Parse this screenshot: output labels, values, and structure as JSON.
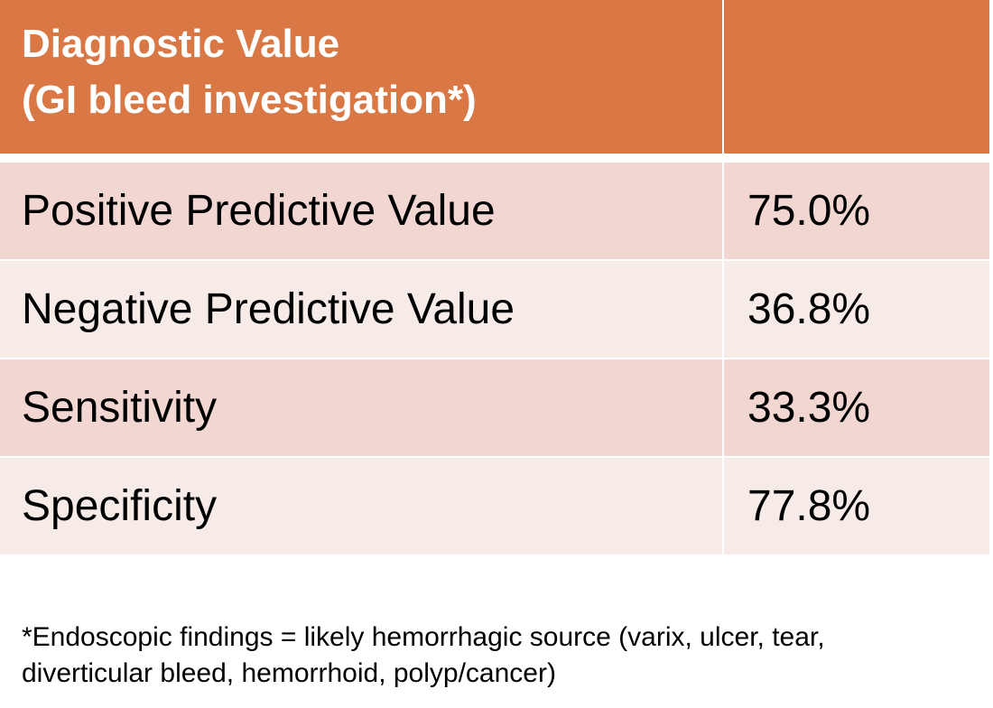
{
  "table": {
    "header": {
      "title_line1": "Diagnostic Value",
      "title_line2": "(GI bleed investigation*)",
      "value_header": ""
    },
    "rows": [
      {
        "metric": "Positive Predictive Value",
        "value": "75.0%"
      },
      {
        "metric": "Negative Predictive Value",
        "value": "36.8%"
      },
      {
        "metric": "Sensitivity",
        "value": "33.3%"
      },
      {
        "metric": "Specificity",
        "value": "77.8%"
      }
    ]
  },
  "footnote": {
    "line1": "*Endoscopic findings = likely hemorrhagic source (varix, ulcer, tear,",
    "line2": "diverticular bleed, hemorrhoid, polyp/cancer)"
  },
  "colors": {
    "header_bg": "#d97845",
    "header_text": "#ffffff",
    "row_dark_bg": "#f1d6d1",
    "row_light_bg": "#f7ebe8",
    "divider": "#ffffff"
  }
}
